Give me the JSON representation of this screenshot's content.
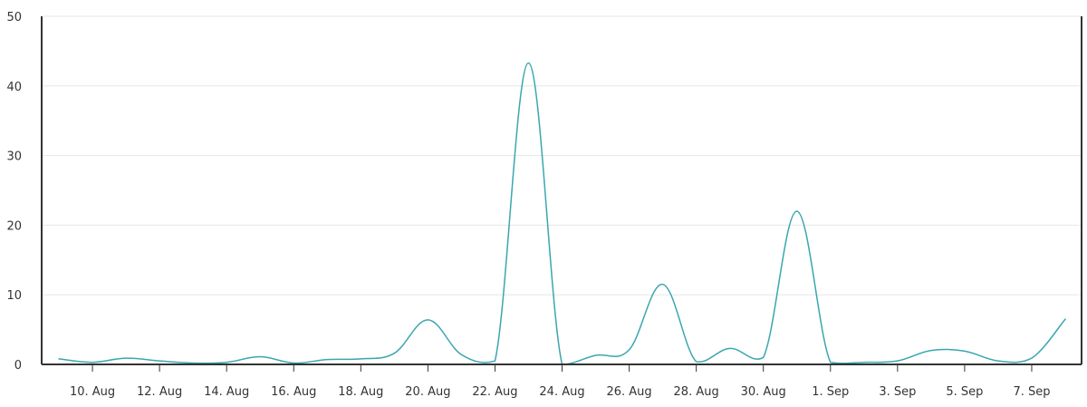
{
  "chart_data": {
    "type": "line",
    "title": "",
    "xlabel": "",
    "ylabel": "",
    "ylim": [
      0,
      50
    ],
    "y_ticks": [
      0,
      10,
      20,
      30,
      40,
      50
    ],
    "x_range": [
      "2019-08-08",
      "2019-09-08"
    ],
    "x_ticks": [
      {
        "date": "2019-08-10",
        "label": "10. Aug"
      },
      {
        "date": "2019-08-12",
        "label": "12. Aug"
      },
      {
        "date": "2019-08-14",
        "label": "14. Aug"
      },
      {
        "date": "2019-08-16",
        "label": "16. Aug"
      },
      {
        "date": "2019-08-18",
        "label": "18. Aug"
      },
      {
        "date": "2019-08-20",
        "label": "20. Aug"
      },
      {
        "date": "2019-08-22",
        "label": "22. Aug"
      },
      {
        "date": "2019-08-24",
        "label": "24. Aug"
      },
      {
        "date": "2019-08-26",
        "label": "26. Aug"
      },
      {
        "date": "2019-08-28",
        "label": "28. Aug"
      },
      {
        "date": "2019-08-30",
        "label": "30. Aug"
      },
      {
        "date": "2019-09-01",
        "label": "1. Sep"
      },
      {
        "date": "2019-09-03",
        "label": "3. Sep"
      },
      {
        "date": "2019-09-05",
        "label": "5. Sep"
      },
      {
        "date": "2019-09-07",
        "label": "7. Sep"
      }
    ],
    "grid": true,
    "legend": "none",
    "series": [
      {
        "color": "#3aa6b0",
        "points": [
          {
            "x": "2019-08-09",
            "y": 0.8
          },
          {
            "x": "2019-08-10",
            "y": 0.3
          },
          {
            "x": "2019-08-11",
            "y": 0.9
          },
          {
            "x": "2019-08-12",
            "y": 0.5
          },
          {
            "x": "2019-08-13",
            "y": 0.2
          },
          {
            "x": "2019-08-14",
            "y": 0.3
          },
          {
            "x": "2019-08-15",
            "y": 1.1
          },
          {
            "x": "2019-08-16",
            "y": 0.2
          },
          {
            "x": "2019-08-17",
            "y": 0.7
          },
          {
            "x": "2019-08-18",
            "y": 0.8
          },
          {
            "x": "2019-08-19",
            "y": 1.6
          },
          {
            "x": "2019-08-20",
            "y": 6.4
          },
          {
            "x": "2019-08-21",
            "y": 1.4
          },
          {
            "x": "2019-08-22",
            "y": 0.5
          },
          {
            "x": "2019-08-23",
            "y": 43.3
          },
          {
            "x": "2019-08-24",
            "y": 0.0
          },
          {
            "x": "2019-08-25",
            "y": 1.3
          },
          {
            "x": "2019-08-26",
            "y": 2.1
          },
          {
            "x": "2019-08-27",
            "y": 11.5
          },
          {
            "x": "2019-08-28",
            "y": 0.4
          },
          {
            "x": "2019-08-29",
            "y": 2.3
          },
          {
            "x": "2019-08-30",
            "y": 1.0
          },
          {
            "x": "2019-08-31",
            "y": 22.0
          },
          {
            "x": "2019-09-01",
            "y": 0.3
          },
          {
            "x": "2019-09-02",
            "y": 0.3
          },
          {
            "x": "2019-09-03",
            "y": 0.5
          },
          {
            "x": "2019-09-04",
            "y": 2.0
          },
          {
            "x": "2019-09-05",
            "y": 1.9
          },
          {
            "x": "2019-09-06",
            "y": 0.5
          },
          {
            "x": "2019-09-07",
            "y": 0.9
          },
          {
            "x": "2019-09-08",
            "y": 6.5
          }
        ]
      }
    ]
  }
}
